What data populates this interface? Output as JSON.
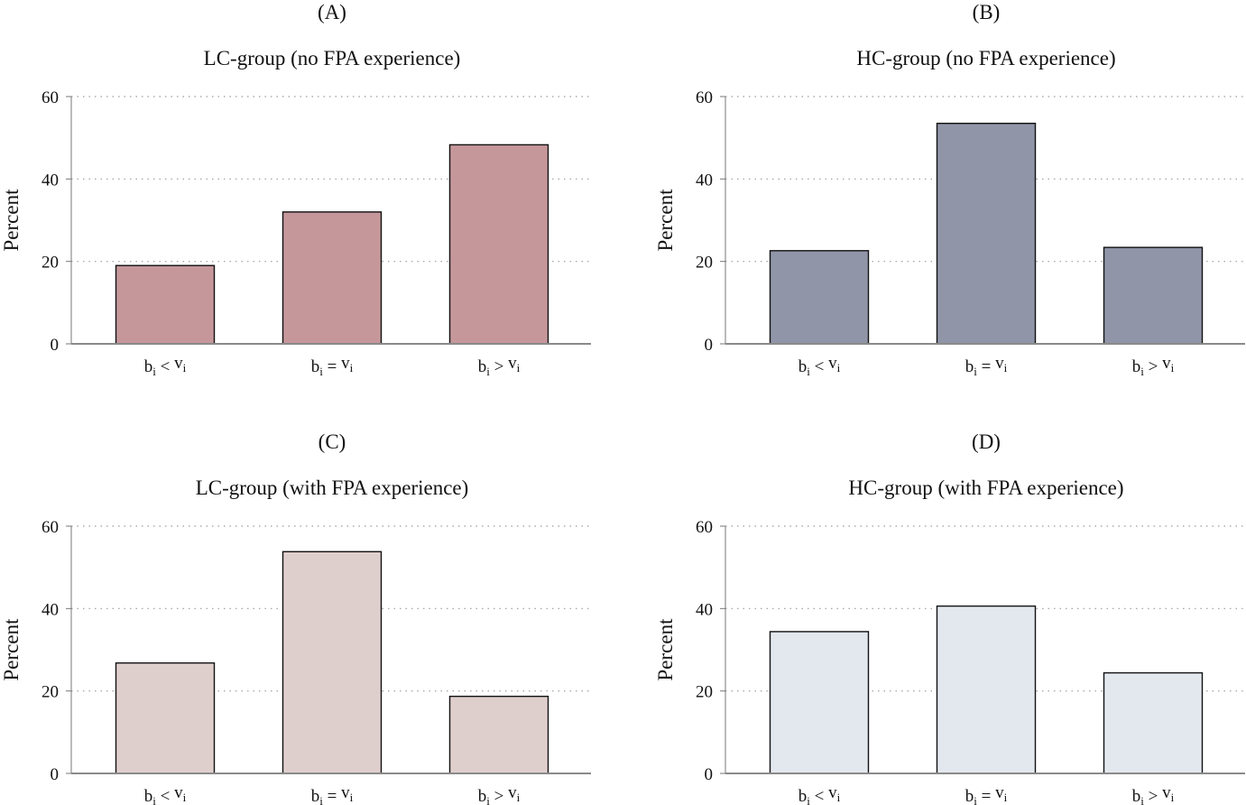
{
  "chart_data": [
    {
      "type": "bar",
      "panel_label": "(A)",
      "title": "LC-group (no FPA experience)",
      "xlabel": "",
      "ylabel": "Percent",
      "categories": [
        "b_i < v_i",
        "b_i = v_i",
        "b_i > v_i"
      ],
      "category_labels": [
        {
          "base": "b",
          "sub1": "i",
          "op": "<",
          "var": "v",
          "sub2": "i"
        },
        {
          "base": "b",
          "sub1": "i",
          "op": "=",
          "var": "v",
          "sub2": "i"
        },
        {
          "base": "b",
          "sub1": "i",
          "op": ">",
          "var": "v",
          "sub2": "i"
        }
      ],
      "values": [
        19,
        32,
        48.3
      ],
      "ylim": [
        0,
        60
      ],
      "yticks": [
        "0",
        "20",
        "40",
        "60"
      ],
      "grid": true,
      "bar_color": "#c5979b"
    },
    {
      "type": "bar",
      "panel_label": "(B)",
      "title": "HC-group (no FPA experience)",
      "xlabel": "",
      "ylabel": "Percent",
      "categories": [
        "b_i < v_i",
        "b_i = v_i",
        "b_i > v_i"
      ],
      "category_labels": [
        {
          "base": "b",
          "sub1": "i",
          "op": "<",
          "var": "v",
          "sub2": "i"
        },
        {
          "base": "b",
          "sub1": "i",
          "op": "=",
          "var": "v",
          "sub2": "i"
        },
        {
          "base": "b",
          "sub1": "i",
          "op": ">",
          "var": "v",
          "sub2": "i"
        }
      ],
      "values": [
        22.6,
        53.5,
        23.4
      ],
      "ylim": [
        0,
        60
      ],
      "yticks": [
        "0",
        "20",
        "40",
        "60"
      ],
      "grid": true,
      "bar_color": "#9095a8"
    },
    {
      "type": "bar",
      "panel_label": "(C)",
      "title": "LC-group (with FPA experience)",
      "xlabel": "",
      "ylabel": "Percent",
      "categories": [
        "b_i < v_i",
        "b_i = v_i",
        "b_i > v_i"
      ],
      "category_labels": [
        {
          "base": "b",
          "sub1": "i",
          "op": "<",
          "var": "v",
          "sub2": "i"
        },
        {
          "base": "b",
          "sub1": "i",
          "op": "=",
          "var": "v",
          "sub2": "i"
        },
        {
          "base": "b",
          "sub1": "i",
          "op": ">",
          "var": "v",
          "sub2": "i"
        }
      ],
      "values": [
        26.8,
        53.8,
        18.7
      ],
      "ylim": [
        0,
        60
      ],
      "yticks": [
        "0",
        "20",
        "40",
        "60"
      ],
      "grid": true,
      "bar_color": "#dfcfcc"
    },
    {
      "type": "bar",
      "panel_label": "(D)",
      "title": "HC-group (with FPA experience)",
      "xlabel": "",
      "ylabel": "Percent",
      "categories": [
        "b_i < v_i",
        "b_i = v_i",
        "b_i > v_i"
      ],
      "category_labels": [
        {
          "base": "b",
          "sub1": "i",
          "op": "<",
          "var": "v",
          "sub2": "i"
        },
        {
          "base": "b",
          "sub1": "i",
          "op": "=",
          "var": "v",
          "sub2": "i"
        },
        {
          "base": "b",
          "sub1": "i",
          "op": ">",
          "var": "v",
          "sub2": "i"
        }
      ],
      "values": [
        34.4,
        40.6,
        24.4
      ],
      "ylim": [
        0,
        60
      ],
      "yticks": [
        "0",
        "20",
        "40",
        "60"
      ],
      "grid": true,
      "bar_color": "#e3e7ee"
    }
  ]
}
